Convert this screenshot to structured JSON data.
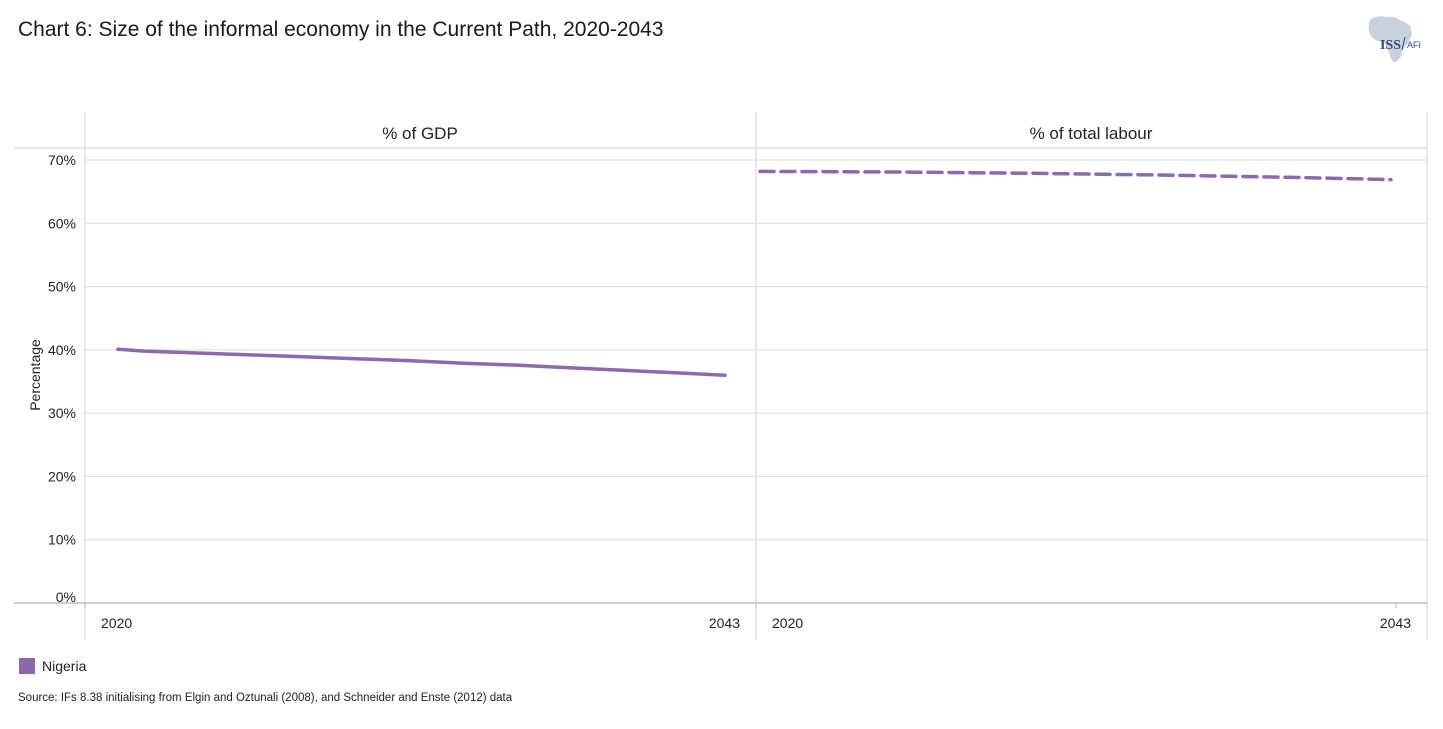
{
  "chart_data": {
    "type": "line",
    "title": "Chart 6: Size of the informal economy in the Current Path, 2020-2043",
    "ylabel": "Percentage",
    "ylim": [
      0,
      70
    ],
    "yticks": [
      0,
      10,
      20,
      30,
      40,
      50,
      60,
      70
    ],
    "ytick_labels": [
      "0%",
      "10%",
      "20%",
      "30%",
      "40%",
      "50%",
      "60%",
      "70%"
    ],
    "grid": true,
    "legend_position": "bottom-left",
    "panels": [
      {
        "title": "% of GDP",
        "x_start_label": "2020",
        "x_end_label": "2043",
        "line_style": "solid",
        "series": [
          {
            "name": "Nigeria",
            "x": [
              2020,
              2021,
              2023,
              2025,
              2027,
              2029,
              2031,
              2033,
              2035,
              2037,
              2039,
              2041,
              2043
            ],
            "values": [
              40.1,
              39.8,
              39.5,
              39.2,
              38.9,
              38.6,
              38.3,
              37.9,
              37.6,
              37.2,
              36.8,
              36.4,
              36.0
            ]
          }
        ]
      },
      {
        "title": "% of total labour",
        "x_start_label": "2020",
        "x_end_label": "2043",
        "line_style": "dashed",
        "series": [
          {
            "name": "Nigeria",
            "x": [
              2020,
              2025,
              2030,
              2035,
              2040,
              2043
            ],
            "values": [
              68.2,
              68.1,
              67.9,
              67.6,
              67.2,
              66.9
            ]
          }
        ]
      }
    ],
    "legend": [
      {
        "name": "Nigeria",
        "color": "#8c68ad"
      }
    ]
  },
  "colors": {
    "series": "#8c68ad",
    "grid": "#dcdcdc",
    "frame": "#cfcfcf",
    "axis": "#bdbdbd"
  },
  "source": "Source: IFs 8.38 initialising  from Elgin and Oztunali (2008), and Schneider and Enste (2012) data",
  "logo": {
    "text_main": "ISS",
    "text_sub": "AFI"
  }
}
